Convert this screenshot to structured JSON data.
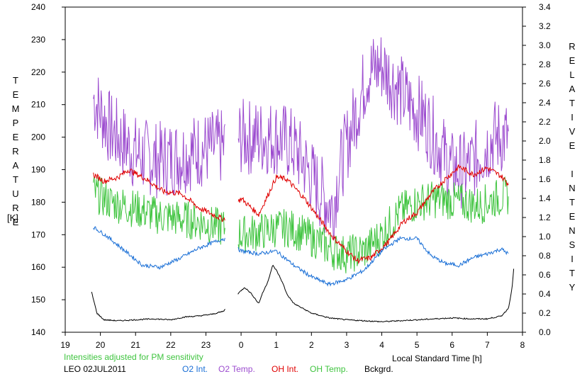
{
  "chart_data": {
    "type": "line",
    "left_axis": {
      "label": "TEMPERATURE",
      "unit": "[K]",
      "range": [
        140,
        240
      ],
      "ticks": [
        "140",
        "150",
        "160",
        "170",
        "180",
        "190",
        "200",
        "210",
        "220",
        "230",
        "240"
      ]
    },
    "right_axis": {
      "label": "RELATIVE INTENSITY",
      "range": [
        0.0,
        3.4
      ],
      "ticks": [
        "0.0",
        "0.2",
        "0.4",
        "0.6",
        "0.8",
        "1.0",
        "1.2",
        "1.4",
        "1.6",
        "1.8",
        "2.0",
        "2.2",
        "2.4",
        "2.6",
        "2.8",
        "3.0",
        "3.2",
        "3.4"
      ]
    },
    "x_axis": {
      "label": "Local Standard Time [h]",
      "range": [
        19,
        32
      ],
      "ticks": [
        "19",
        "20",
        "21",
        "22",
        "23",
        "0",
        "1",
        "2",
        "3",
        "4",
        "5",
        "6",
        "7",
        "8"
      ]
    },
    "note": "Intensities adjusted for PM sensitivity",
    "station": "LEO 02JUL2011",
    "legend": [
      {
        "name": "O2 Int.",
        "color": "#1a6fd6"
      },
      {
        "name": "O2 Temp.",
        "color": "#9c4ccf"
      },
      {
        "name": "OH Int.",
        "color": "#e00000"
      },
      {
        "name": "OH Temp.",
        "color": "#3fc43f"
      },
      {
        "name": "Bckgrd.",
        "color": "#000000"
      }
    ],
    "series": [
      {
        "name": "O2 Temp.",
        "axis": "left",
        "color": "#9c4ccf",
        "noise": 12,
        "x": [
          19.8,
          20.3,
          21.0,
          21.6,
          22.2,
          22.8,
          23.5,
          24.0,
          24.6,
          25.0,
          25.4,
          25.8,
          26.2,
          26.6,
          26.8,
          27.2,
          27.6,
          28.0,
          28.4,
          28.8,
          29.2,
          29.6,
          30.0,
          30.4,
          30.8,
          31.2,
          31.6
        ],
        "y": [
          212,
          202,
          195,
          193,
          194,
          196,
          197,
          200,
          200,
          200,
          198,
          192,
          184,
          178,
          190,
          205,
          220,
          222,
          216,
          210,
          206,
          198,
          190,
          190,
          195,
          200,
          200
        ]
      },
      {
        "name": "OH Temp.",
        "axis": "left",
        "color": "#3fc43f",
        "noise": 6,
        "x": [
          19.8,
          20.3,
          21.0,
          21.6,
          22.2,
          22.8,
          23.5,
          24.0,
          24.6,
          25.0,
          25.4,
          25.8,
          26.2,
          26.6,
          27.0,
          27.5,
          28.0,
          28.5,
          29.0,
          29.6,
          30.2,
          30.8,
          31.2,
          31.6
        ],
        "y": [
          183,
          180,
          178,
          176,
          175,
          174,
          172,
          170,
          171,
          172,
          172,
          170,
          168,
          165,
          164,
          165,
          170,
          177,
          180,
          181,
          180,
          179,
          181,
          182
        ]
      },
      {
        "name": "OH Int.",
        "axis": "right",
        "color": "#e00000",
        "noise": 0.03,
        "x": [
          19.8,
          20.1,
          20.5,
          20.8,
          21.3,
          21.8,
          22.3,
          22.8,
          23.2,
          23.5,
          24.0,
          24.5,
          25.0,
          25.3,
          25.8,
          26.2,
          26.6,
          27.0,
          27.3,
          27.7,
          28.2,
          28.6,
          29.0,
          29.4,
          29.8,
          30.2,
          30.6,
          31.0,
          31.4,
          31.6
        ],
        "y": [
          1.65,
          1.58,
          1.62,
          1.7,
          1.6,
          1.47,
          1.45,
          1.3,
          1.23,
          1.18,
          1.4,
          1.23,
          1.62,
          1.6,
          1.4,
          1.2,
          1.0,
          0.85,
          0.75,
          0.78,
          0.95,
          1.15,
          1.25,
          1.45,
          1.6,
          1.73,
          1.65,
          1.72,
          1.63,
          1.55
        ]
      },
      {
        "name": "O2 Int.",
        "axis": "right",
        "color": "#1a6fd6",
        "noise": 0.02,
        "x": [
          19.8,
          20.2,
          20.7,
          21.2,
          21.7,
          22.3,
          22.8,
          23.5,
          24.0,
          24.5,
          25.0,
          25.5,
          26.0,
          26.5,
          27.0,
          27.5,
          28.0,
          28.5,
          29.0,
          29.4,
          29.8,
          30.2,
          30.6,
          31.0,
          31.4,
          31.6
        ],
        "y": [
          1.1,
          1.0,
          0.85,
          0.7,
          0.68,
          0.78,
          0.88,
          0.98,
          0.85,
          0.82,
          0.85,
          0.7,
          0.58,
          0.5,
          0.55,
          0.65,
          0.85,
          0.98,
          0.98,
          0.8,
          0.72,
          0.7,
          0.78,
          0.82,
          0.87,
          0.82
        ]
      },
      {
        "name": "Bckgrd.",
        "axis": "right",
        "color": "#000000",
        "noise": 0.006,
        "x": [
          19.75,
          19.9,
          20.1,
          20.5,
          21.0,
          21.5,
          22.0,
          22.4,
          22.8,
          23.2,
          23.5,
          23.9,
          24.1,
          24.3,
          24.5,
          24.6,
          24.75,
          24.9,
          25.0,
          25.1,
          25.2,
          25.3,
          25.5,
          26.0,
          26.5,
          27.0,
          27.5,
          28.0,
          28.5,
          29.0,
          29.5,
          30.0,
          30.5,
          31.0,
          31.4,
          31.6,
          31.7,
          31.75
        ],
        "y": [
          0.42,
          0.2,
          0.13,
          0.12,
          0.13,
          0.14,
          0.13,
          0.16,
          0.17,
          0.19,
          0.22,
          0.4,
          0.47,
          0.4,
          0.3,
          0.4,
          0.52,
          0.7,
          0.65,
          0.58,
          0.5,
          0.4,
          0.3,
          0.2,
          0.15,
          0.13,
          0.12,
          0.11,
          0.12,
          0.13,
          0.14,
          0.15,
          0.14,
          0.14,
          0.17,
          0.25,
          0.45,
          0.66
        ]
      }
    ]
  }
}
